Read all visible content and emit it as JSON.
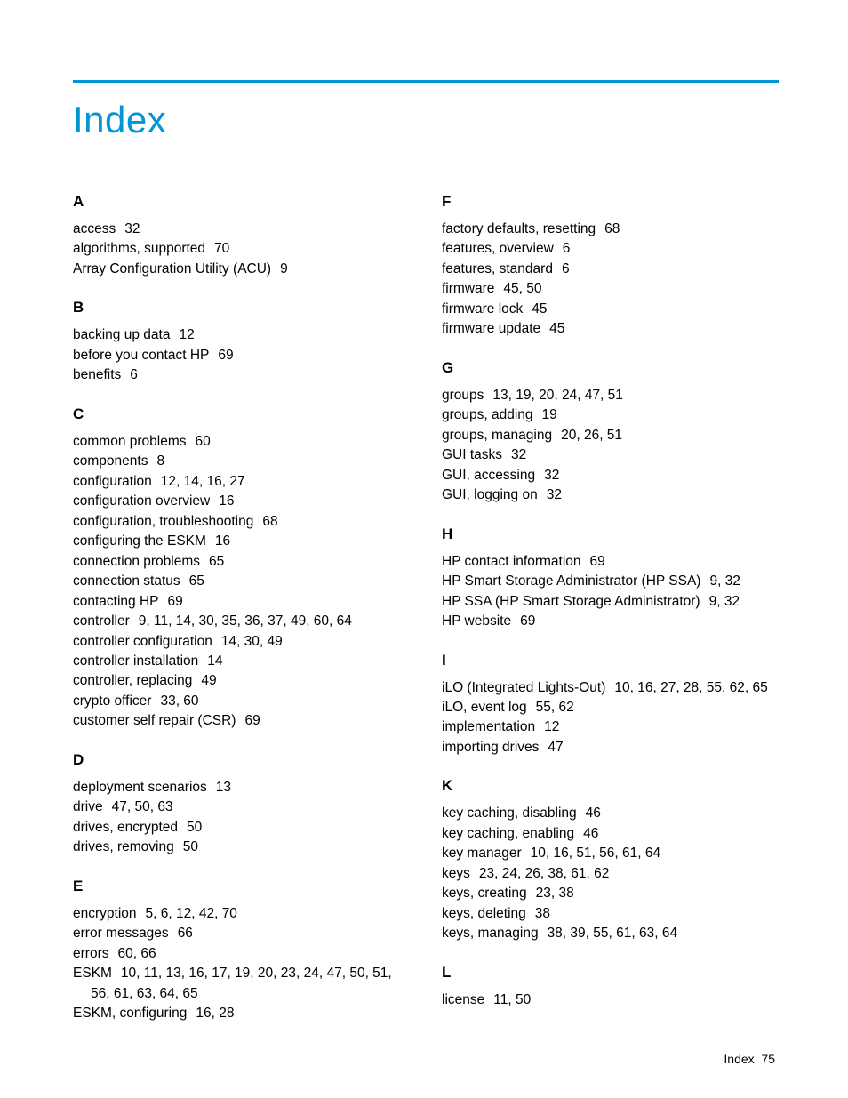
{
  "title": "Index",
  "footer": {
    "label": "Index",
    "page": "75"
  },
  "colors": {
    "accent": "#0096d6",
    "text": "#000000",
    "background": "#ffffff"
  },
  "left": [
    {
      "letter": "A",
      "entries": [
        {
          "term": "access",
          "pages": "32"
        },
        {
          "term": "algorithms, supported",
          "pages": "70"
        },
        {
          "term": "Array Configuration Utility (ACU)",
          "pages": "9"
        }
      ]
    },
    {
      "letter": "B",
      "entries": [
        {
          "term": "backing up data",
          "pages": "12"
        },
        {
          "term": "before you contact HP",
          "pages": "69"
        },
        {
          "term": "benefits",
          "pages": "6"
        }
      ]
    },
    {
      "letter": "C",
      "entries": [
        {
          "term": "common problems",
          "pages": "60"
        },
        {
          "term": "components",
          "pages": "8"
        },
        {
          "term": "configuration",
          "pages": "12, 14, 16, 27"
        },
        {
          "term": "configuration overview",
          "pages": "16"
        },
        {
          "term": "configuration, troubleshooting",
          "pages": "68"
        },
        {
          "term": "configuring the ESKM",
          "pages": "16"
        },
        {
          "term": "connection problems",
          "pages": "65"
        },
        {
          "term": "connection status",
          "pages": "65"
        },
        {
          "term": "contacting HP",
          "pages": "69"
        },
        {
          "term": "controller",
          "pages": "9, 11, 14, 30, 35, 36, 37, 49, 60, 64"
        },
        {
          "term": "controller configuration",
          "pages": "14, 30, 49"
        },
        {
          "term": "controller installation",
          "pages": "14"
        },
        {
          "term": "controller, replacing",
          "pages": "49"
        },
        {
          "term": "crypto officer",
          "pages": "33, 60"
        },
        {
          "term": "customer self repair (CSR)",
          "pages": "69"
        }
      ]
    },
    {
      "letter": "D",
      "entries": [
        {
          "term": "deployment scenarios",
          "pages": "13"
        },
        {
          "term": "drive",
          "pages": "47, 50, 63"
        },
        {
          "term": "drives, encrypted",
          "pages": "50"
        },
        {
          "term": "drives, removing",
          "pages": "50"
        }
      ]
    },
    {
      "letter": "E",
      "entries": [
        {
          "term": "encryption",
          "pages": "5, 6, 12, 42, 70"
        },
        {
          "term": "error messages",
          "pages": "66"
        },
        {
          "term": "errors",
          "pages": "60, 66"
        },
        {
          "term": "ESKM",
          "pages": "10, 11, 13, 16, 17, 19, 20, 23, 24, 47, 50, 51, 56, 61, 63, 64, 65"
        },
        {
          "term": "ESKM, configuring",
          "pages": "16, 28"
        }
      ]
    }
  ],
  "right": [
    {
      "letter": "F",
      "entries": [
        {
          "term": "factory defaults, resetting",
          "pages": "68"
        },
        {
          "term": "features, overview",
          "pages": "6"
        },
        {
          "term": "features, standard",
          "pages": "6"
        },
        {
          "term": "firmware",
          "pages": "45, 50"
        },
        {
          "term": "firmware lock",
          "pages": "45"
        },
        {
          "term": "firmware update",
          "pages": "45"
        }
      ]
    },
    {
      "letter": "G",
      "entries": [
        {
          "term": "groups",
          "pages": "13, 19, 20, 24, 47, 51"
        },
        {
          "term": "groups, adding",
          "pages": "19"
        },
        {
          "term": "groups, managing",
          "pages": "20, 26, 51"
        },
        {
          "term": "GUI tasks",
          "pages": "32"
        },
        {
          "term": "GUI, accessing",
          "pages": "32"
        },
        {
          "term": "GUI, logging on",
          "pages": "32"
        }
      ]
    },
    {
      "letter": "H",
      "entries": [
        {
          "term": "HP contact information",
          "pages": "69"
        },
        {
          "term": "HP Smart Storage Administrator (HP SSA)",
          "pages": "9, 32"
        },
        {
          "term": "HP SSA (HP Smart Storage Administrator)",
          "pages": "9, 32"
        },
        {
          "term": "HP website",
          "pages": "69"
        }
      ]
    },
    {
      "letter": "I",
      "entries": [
        {
          "term": "iLO (Integrated Lights-Out)",
          "pages": "10, 16, 27, 28, 55, 62, 65"
        },
        {
          "term": "iLO, event log",
          "pages": "55, 62"
        },
        {
          "term": "implementation",
          "pages": "12"
        },
        {
          "term": "importing drives",
          "pages": "47"
        }
      ]
    },
    {
      "letter": "K",
      "entries": [
        {
          "term": "key caching, disabling",
          "pages": "46"
        },
        {
          "term": "key caching, enabling",
          "pages": "46"
        },
        {
          "term": "key manager",
          "pages": "10, 16, 51, 56, 61, 64"
        },
        {
          "term": "keys",
          "pages": "23, 24, 26, 38, 61, 62"
        },
        {
          "term": "keys, creating",
          "pages": "23, 38"
        },
        {
          "term": "keys, deleting",
          "pages": "38"
        },
        {
          "term": "keys, managing",
          "pages": "38, 39, 55, 61, 63, 64"
        }
      ]
    },
    {
      "letter": "L",
      "entries": [
        {
          "term": "license",
          "pages": "11, 50"
        }
      ]
    }
  ]
}
